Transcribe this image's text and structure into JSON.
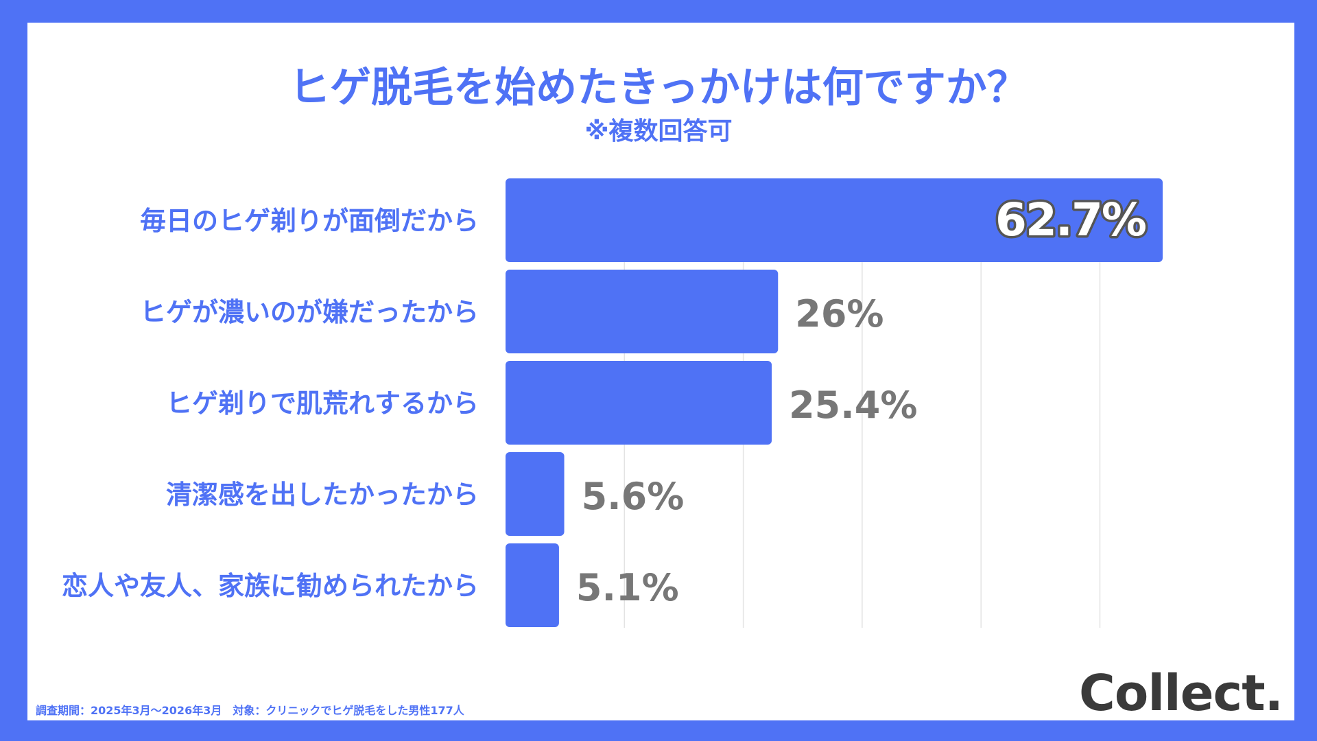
{
  "header": {
    "title": "ヒゲ脱毛を始めたきっかけは何ですか？",
    "subtitle": "※複数回答可"
  },
  "footer": {
    "note": "調査期間：2025年3月〜2026年3月　対象：クリニックでヒゲ脱毛をした男性177人",
    "logo": "Collect."
  },
  "colors": {
    "background": "#4F72F5",
    "bar": "#4F72F5",
    "label": "#4F72F5",
    "value": "#777777",
    "grid": "#e3e3e3"
  },
  "chart_data": {
    "type": "bar",
    "orientation": "horizontal",
    "title": "ヒゲ脱毛を始めたきっかけは何ですか？",
    "subtitle": "※複数回答可",
    "categories": [
      "毎日のヒゲ剃りが面倒だから",
      "ヒゲが濃いのが嫌だったから",
      "ヒゲ剃りで肌荒れするから",
      "清潔感を出したかったから",
      "恋人や友人、家族に勧められたから"
    ],
    "values": [
      62.7,
      26,
      25.4,
      5.6,
      5.1
    ],
    "value_labels": [
      "62.7%",
      "26%",
      "25.4%",
      "5.6%",
      "5.1%"
    ],
    "xlim": [
      0,
      68
    ],
    "grid": true,
    "legend": "none"
  }
}
